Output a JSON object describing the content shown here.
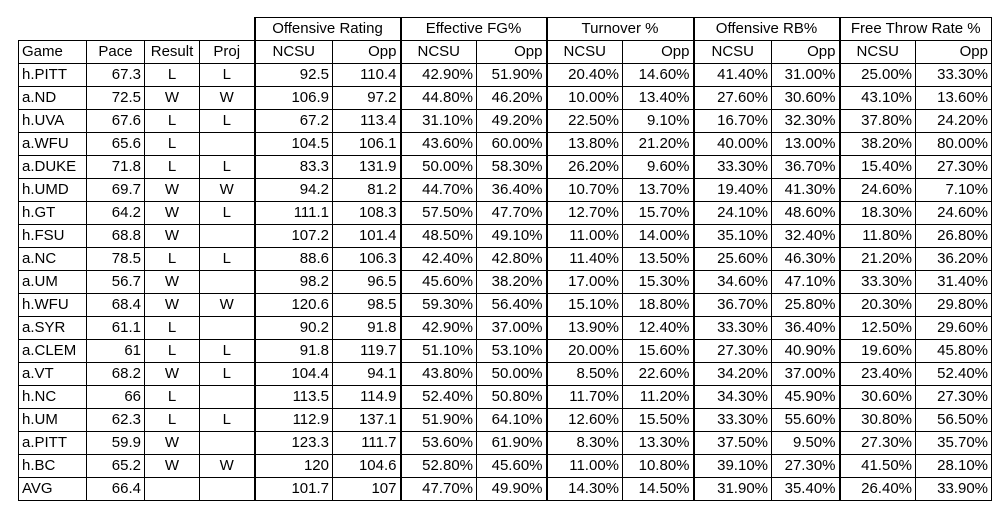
{
  "groups": [
    "Offensive Rating",
    "Effective FG%",
    "Turnover %",
    "Offensive RB%",
    "Free Throw Rate %"
  ],
  "base_headers": [
    "Game",
    "Pace",
    "Result",
    "Proj"
  ],
  "sub_headers": [
    "NCSU",
    "Opp"
  ],
  "rows": [
    [
      "h.PITT",
      "67.3",
      "L",
      "L",
      "92.5",
      "110.4",
      "42.90%",
      "51.90%",
      "20.40%",
      "14.60%",
      "41.40%",
      "31.00%",
      "25.00%",
      "33.30%"
    ],
    [
      "a.ND",
      "72.5",
      "W",
      "W",
      "106.9",
      "97.2",
      "44.80%",
      "46.20%",
      "10.00%",
      "13.40%",
      "27.60%",
      "30.60%",
      "43.10%",
      "13.60%"
    ],
    [
      "h.UVA",
      "67.6",
      "L",
      "L",
      "67.2",
      "113.4",
      "31.10%",
      "49.20%",
      "22.50%",
      "9.10%",
      "16.70%",
      "32.30%",
      "37.80%",
      "24.20%"
    ],
    [
      "a.WFU",
      "65.6",
      "L",
      "",
      "104.5",
      "106.1",
      "43.60%",
      "60.00%",
      "13.80%",
      "21.20%",
      "40.00%",
      "13.00%",
      "38.20%",
      "80.00%"
    ],
    [
      "a.DUKE",
      "71.8",
      "L",
      "L",
      "83.3",
      "131.9",
      "50.00%",
      "58.30%",
      "26.20%",
      "9.60%",
      "33.30%",
      "36.70%",
      "15.40%",
      "27.30%"
    ],
    [
      "h.UMD",
      "69.7",
      "W",
      "W",
      "94.2",
      "81.2",
      "44.70%",
      "36.40%",
      "10.70%",
      "13.70%",
      "19.40%",
      "41.30%",
      "24.60%",
      "7.10%"
    ],
    [
      "h.GT",
      "64.2",
      "W",
      "L",
      "111.1",
      "108.3",
      "57.50%",
      "47.70%",
      "12.70%",
      "15.70%",
      "24.10%",
      "48.60%",
      "18.30%",
      "24.60%"
    ],
    [
      "h.FSU",
      "68.8",
      "W",
      "",
      "107.2",
      "101.4",
      "48.50%",
      "49.10%",
      "11.00%",
      "14.00%",
      "35.10%",
      "32.40%",
      "11.80%",
      "26.80%"
    ],
    [
      "a.NC",
      "78.5",
      "L",
      "L",
      "88.6",
      "106.3",
      "42.40%",
      "42.80%",
      "11.40%",
      "13.50%",
      "25.60%",
      "46.30%",
      "21.20%",
      "36.20%"
    ],
    [
      "a.UM",
      "56.7",
      "W",
      "",
      "98.2",
      "96.5",
      "45.60%",
      "38.20%",
      "17.00%",
      "15.30%",
      "34.60%",
      "47.10%",
      "33.30%",
      "31.40%"
    ],
    [
      "h.WFU",
      "68.4",
      "W",
      "W",
      "120.6",
      "98.5",
      "59.30%",
      "56.40%",
      "15.10%",
      "18.80%",
      "36.70%",
      "25.80%",
      "20.30%",
      "29.80%"
    ],
    [
      "a.SYR",
      "61.1",
      "L",
      "",
      "90.2",
      "91.8",
      "42.90%",
      "37.00%",
      "13.90%",
      "12.40%",
      "33.30%",
      "36.40%",
      "12.50%",
      "29.60%"
    ],
    [
      "a.CLEM",
      "61",
      "L",
      "L",
      "91.8",
      "119.7",
      "51.10%",
      "53.10%",
      "20.00%",
      "15.60%",
      "27.30%",
      "40.90%",
      "19.60%",
      "45.80%"
    ],
    [
      "a.VT",
      "68.2",
      "W",
      "L",
      "104.4",
      "94.1",
      "43.80%",
      "50.00%",
      "8.50%",
      "22.60%",
      "34.20%",
      "37.00%",
      "23.40%",
      "52.40%"
    ],
    [
      "h.NC",
      "66",
      "L",
      "",
      "113.5",
      "114.9",
      "52.40%",
      "50.80%",
      "11.70%",
      "11.20%",
      "34.30%",
      "45.90%",
      "30.60%",
      "27.30%"
    ],
    [
      "h.UM",
      "62.3",
      "L",
      "L",
      "112.9",
      "137.1",
      "51.90%",
      "64.10%",
      "12.60%",
      "15.50%",
      "33.30%",
      "55.60%",
      "30.80%",
      "56.50%"
    ],
    [
      "a.PITT",
      "59.9",
      "W",
      "",
      "123.3",
      "111.7",
      "53.60%",
      "61.90%",
      "8.30%",
      "13.30%",
      "37.50%",
      "9.50%",
      "27.30%",
      "35.70%"
    ],
    [
      "h.BC",
      "65.2",
      "W",
      "W",
      "120",
      "104.6",
      "52.80%",
      "45.60%",
      "11.00%",
      "10.80%",
      "39.10%",
      "27.30%",
      "41.50%",
      "28.10%"
    ],
    [
      "AVG",
      "66.4",
      "",
      "",
      "101.7",
      "107",
      "47.70%",
      "49.90%",
      "14.30%",
      "14.50%",
      "31.90%",
      "35.40%",
      "26.40%",
      "33.90%"
    ]
  ]
}
